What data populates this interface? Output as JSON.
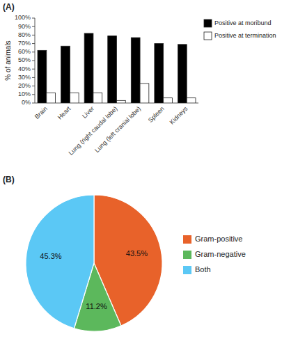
{
  "chart_data": [
    {
      "type": "bar",
      "title": "(A)",
      "ylabel": "% of animals",
      "categories": [
        "Brain",
        "Heart",
        "Liver",
        "Lung (right caudal lobe)",
        "Lung (left cranial lobe)",
        "Spleen",
        "Kidneys"
      ],
      "series": [
        {
          "name": "Positive at moribund",
          "color": "#000000",
          "values": [
            62,
            67,
            82,
            79,
            77,
            70,
            69
          ]
        },
        {
          "name": "Positive at termination",
          "color": "#ffffff",
          "values": [
            12,
            12,
            12,
            3,
            23,
            6,
            6
          ]
        }
      ],
      "ylim": [
        0,
        100
      ],
      "yticks": [
        {
          "value": 0,
          "label": "0%"
        },
        {
          "value": 10,
          "label": "10%"
        },
        {
          "value": 20,
          "label": "20%"
        },
        {
          "value": 30,
          "label": "30%"
        },
        {
          "value": 40,
          "label": "40%"
        },
        {
          "value": 50,
          "label": "50%"
        },
        {
          "value": 60,
          "label": "60%"
        },
        {
          "value": 70,
          "label": "70%"
        },
        {
          "value": 80,
          "label": "80%"
        },
        {
          "value": 90,
          "label": "90%"
        },
        {
          "value": 100,
          "label": "100%"
        }
      ],
      "legend": "right"
    },
    {
      "type": "pie",
      "title": "(B)",
      "categories": [
        "Gram-positive",
        "Gram-negative",
        "Both"
      ],
      "values": [
        43.5,
        11.2,
        45.3
      ],
      "value_labels": [
        "43.5%",
        "11.2%",
        "45.3%"
      ],
      "colors": [
        "#E8622A",
        "#5CB85C",
        "#5BC8F5"
      ],
      "data_labels": true,
      "legend": "right"
    }
  ]
}
